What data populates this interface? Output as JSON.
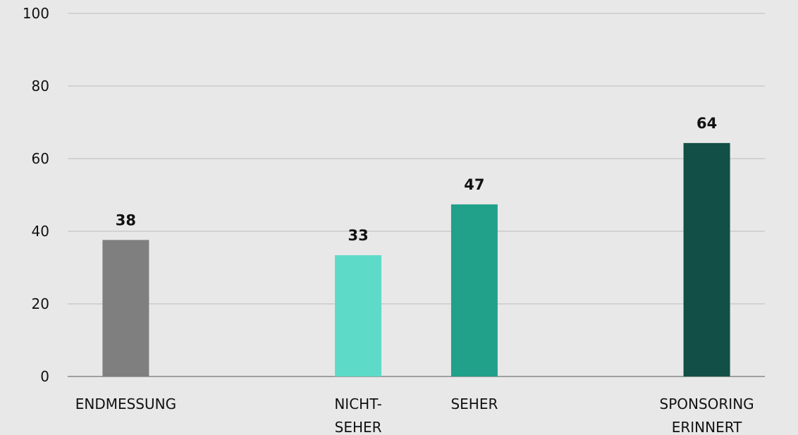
{
  "chart_data": {
    "type": "bar",
    "categories": [
      "ENDMESSUNG",
      null,
      "NICHT-\nSEHER",
      "SEHER",
      null,
      "SPONSORING\nERINNERT"
    ],
    "values": [
      37.6,
      null,
      33.4,
      47.4,
      null,
      64.3
    ],
    "value_labels": [
      "38",
      null,
      "33",
      "47",
      null,
      "64"
    ],
    "colors": [
      "#7f7f7f",
      null,
      "#5ddbc8",
      "#21a08a",
      null,
      "#114f47"
    ],
    "ylim": [
      0,
      100
    ],
    "yticks": [
      0,
      20,
      40,
      60,
      80,
      100
    ],
    "grid": true
  }
}
